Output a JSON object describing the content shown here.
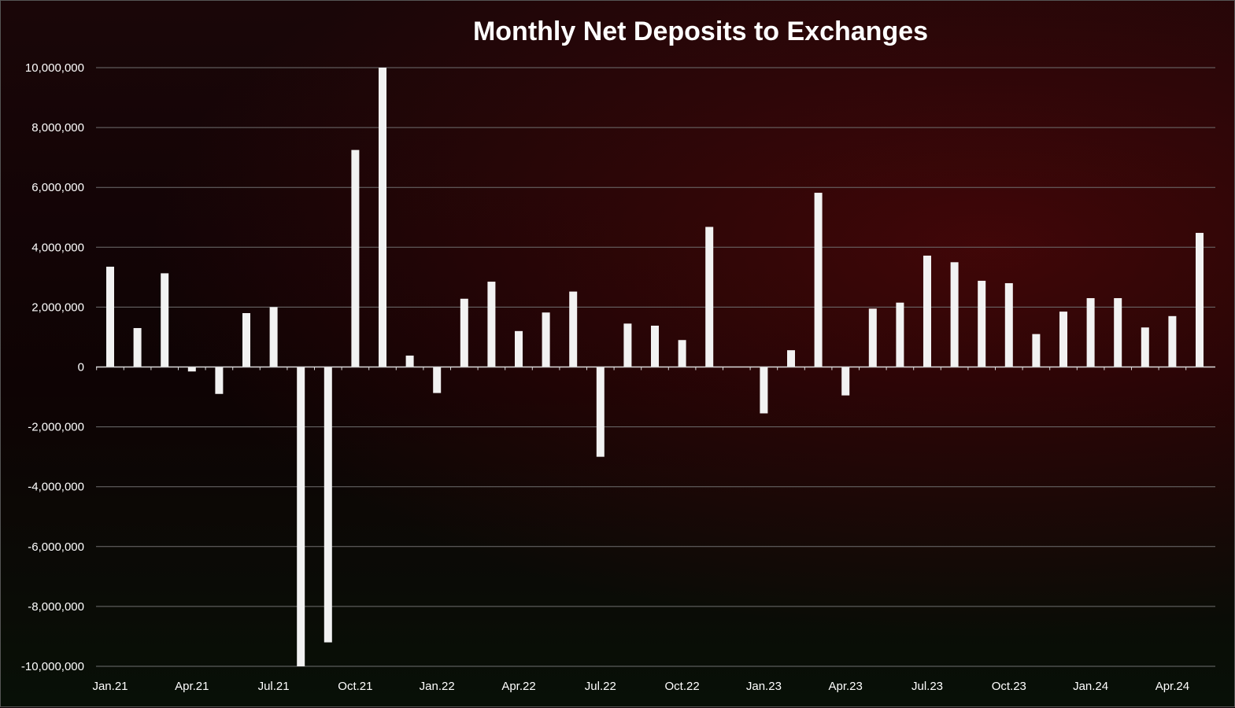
{
  "colors": {
    "background": "#0d0406",
    "bar": "#f2f2f2",
    "gridline": "#6f6f6f",
    "text": "#ffffff"
  },
  "chart_data": {
    "type": "bar",
    "title": "Monthly Net Deposits to Exchanges",
    "xlabel": "",
    "ylabel": "",
    "ylim": [
      -10000000,
      10000000
    ],
    "yticks": [
      10000000,
      8000000,
      6000000,
      4000000,
      2000000,
      0,
      -2000000,
      -4000000,
      -6000000,
      -8000000,
      -10000000
    ],
    "ytick_labels": [
      "10,000,000",
      "8,000,000",
      "6,000,000",
      "4,000,000",
      "2,000,000",
      "0",
      "-2,000,000",
      "-4,000,000",
      "-6,000,000",
      "-8,000,000",
      "-10,000,000"
    ],
    "xtick_labels": [
      {
        "label": "Jan.21",
        "index": 0
      },
      {
        "label": "Apr.21",
        "index": 3
      },
      {
        "label": "Jul.21",
        "index": 6
      },
      {
        "label": "Oct.21",
        "index": 9
      },
      {
        "label": "Jan.22",
        "index": 12
      },
      {
        "label": "Apr.22",
        "index": 15
      },
      {
        "label": "Jul.22",
        "index": 18
      },
      {
        "label": "Oct.22",
        "index": 21
      },
      {
        "label": "Jan.23",
        "index": 24
      },
      {
        "label": "Apr.23",
        "index": 27
      },
      {
        "label": "Jul.23",
        "index": 30
      },
      {
        "label": "Oct.23",
        "index": 33
      },
      {
        "label": "Jan.24",
        "index": 36
      },
      {
        "label": "Apr.24",
        "index": 39
      }
    ],
    "grid": true,
    "legend": "none",
    "categories": [
      "Jan.21",
      "Feb.21",
      "Mar.21",
      "Apr.21",
      "May.21",
      "Jun.21",
      "Jul.21",
      "Aug.21",
      "Sep.21",
      "Oct.21",
      "Nov.21",
      "Dec.21",
      "Jan.22",
      "Feb.22",
      "Mar.22",
      "Apr.22",
      "May.22",
      "Jun.22",
      "Jul.22",
      "Aug.22",
      "Sep.22",
      "Oct.22",
      "Nov.22",
      "Dec.22",
      "Jan.23",
      "Feb.23",
      "Mar.23",
      "Apr.23",
      "May.23",
      "Jun.23",
      "Jul.23",
      "Aug.23",
      "Sep.23",
      "Oct.23",
      "Nov.23",
      "Dec.23",
      "Jan.24",
      "Feb.24",
      "Mar.24",
      "Apr.24",
      "May.24"
    ],
    "values": [
      3350000,
      1300000,
      3130000,
      -150000,
      -900000,
      1800000,
      2000000,
      -10000000,
      -9200000,
      7250000,
      10000000,
      380000,
      -870000,
      2280000,
      2850000,
      1200000,
      1820000,
      2520000,
      -3000000,
      1450000,
      1380000,
      900000,
      4680000,
      0,
      -1550000,
      560000,
      5820000,
      -950000,
      1950000,
      2150000,
      3720000,
      3500000,
      2880000,
      2800000,
      1100000,
      1850000,
      2300000,
      2300000,
      1320000,
      1700000,
      4480000
    ]
  }
}
